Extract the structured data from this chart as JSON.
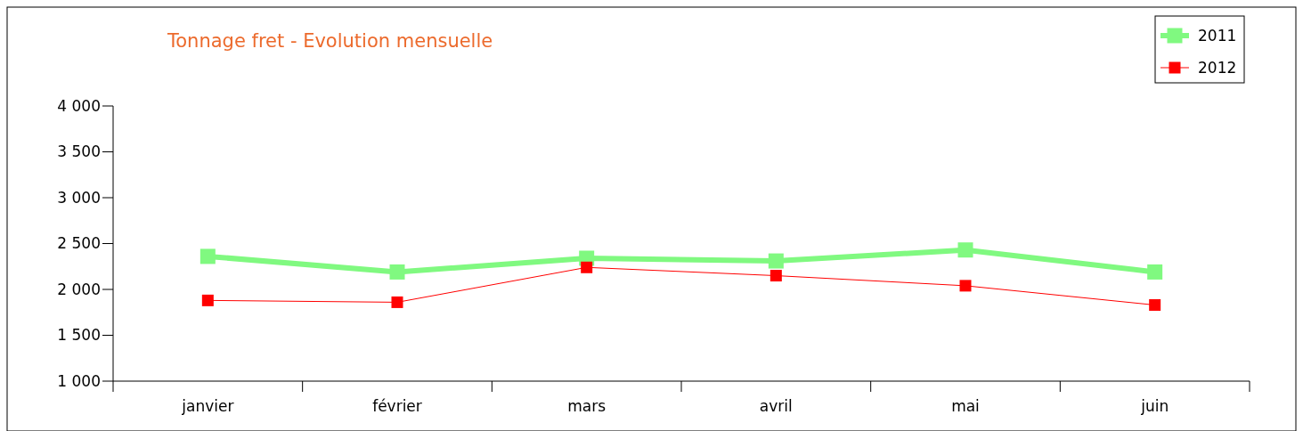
{
  "chart_data": {
    "type": "line",
    "title": "Tonnage fret - Evolution mensuelle",
    "categories": [
      "janvier",
      "février",
      "mars",
      "avril",
      "mai",
      "juin"
    ],
    "series": [
      {
        "name": "2011",
        "color": "#80f980",
        "values": [
          2360,
          2190,
          2340,
          2310,
          2430,
          2190
        ]
      },
      {
        "name": "2012",
        "color": "#ff0000",
        "values": [
          1880,
          1860,
          2240,
          2150,
          2040,
          1830
        ]
      }
    ],
    "ylim": [
      1000,
      4000
    ],
    "yticks": [
      {
        "value": 1000,
        "label": "1 000"
      },
      {
        "value": 1500,
        "label": "1 500"
      },
      {
        "value": 2000,
        "label": "2 000"
      },
      {
        "value": 2500,
        "label": "2 500"
      },
      {
        "value": 3000,
        "label": "3 000"
      },
      {
        "value": 3500,
        "label": "3 500"
      },
      {
        "value": 4000,
        "label": "4 000"
      }
    ],
    "grid": false,
    "legend": "top right",
    "marker": "square",
    "line_style": "solid"
  }
}
